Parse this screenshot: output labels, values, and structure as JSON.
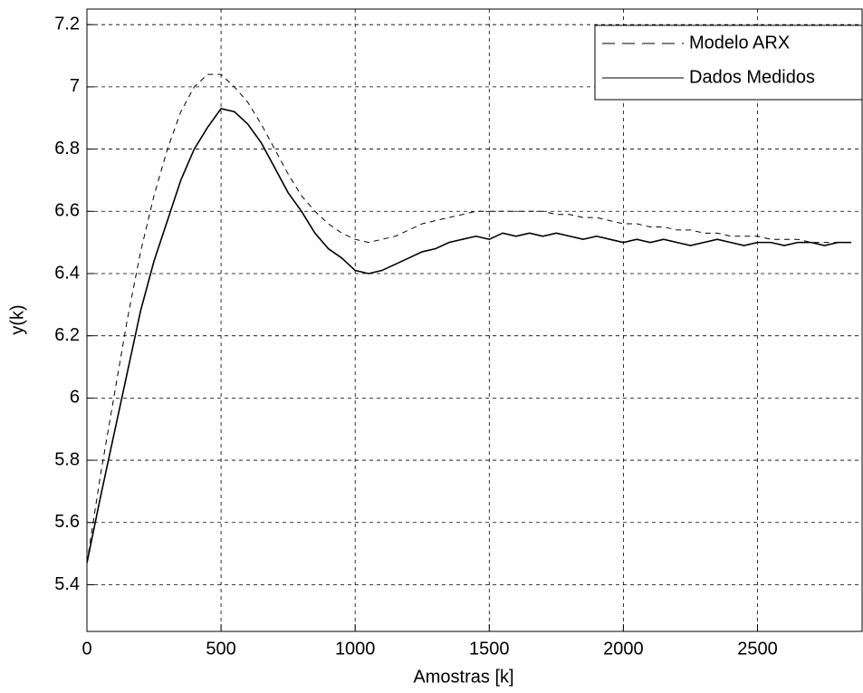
{
  "chart_data": {
    "type": "line",
    "xlabel": "Amostras [k]",
    "ylabel": "y(k)",
    "x": [
      0,
      50,
      100,
      150,
      200,
      250,
      300,
      350,
      400,
      450,
      500,
      550,
      600,
      650,
      700,
      750,
      800,
      850,
      900,
      950,
      1000,
      1050,
      1100,
      1150,
      1200,
      1250,
      1300,
      1350,
      1400,
      1450,
      1500,
      1550,
      1600,
      1650,
      1700,
      1750,
      1800,
      1850,
      1900,
      1950,
      2000,
      2050,
      2100,
      2150,
      2200,
      2250,
      2300,
      2350,
      2400,
      2450,
      2500,
      2550,
      2600,
      2650,
      2700,
      2750,
      2800,
      2850
    ],
    "series": [
      {
        "name": "Modelo ARX",
        "color": "#000000",
        "dash": true,
        "values": [
          5.47,
          5.75,
          6.0,
          6.25,
          6.47,
          6.65,
          6.8,
          6.92,
          7.0,
          7.04,
          7.04,
          7.0,
          6.95,
          6.88,
          6.8,
          6.72,
          6.65,
          6.6,
          6.56,
          6.53,
          6.51,
          6.5,
          6.51,
          6.52,
          6.54,
          6.56,
          6.57,
          6.58,
          6.59,
          6.6,
          6.6,
          6.6,
          6.6,
          6.6,
          6.6,
          6.59,
          6.59,
          6.58,
          6.58,
          6.57,
          6.56,
          6.56,
          6.55,
          6.55,
          6.54,
          6.54,
          6.53,
          6.53,
          6.52,
          6.52,
          6.52,
          6.51,
          6.51,
          6.51,
          6.5,
          6.5,
          6.5,
          6.5
        ]
      },
      {
        "name": "Dados Medidos",
        "color": "#000000",
        "dash": false,
        "values": [
          5.47,
          5.68,
          5.88,
          6.08,
          6.28,
          6.44,
          6.57,
          6.7,
          6.8,
          6.87,
          6.93,
          6.92,
          6.88,
          6.82,
          6.74,
          6.66,
          6.6,
          6.53,
          6.48,
          6.45,
          6.41,
          6.4,
          6.41,
          6.43,
          6.45,
          6.47,
          6.48,
          6.5,
          6.51,
          6.52,
          6.51,
          6.53,
          6.52,
          6.53,
          6.52,
          6.53,
          6.52,
          6.51,
          6.52,
          6.51,
          6.5,
          6.51,
          6.5,
          6.51,
          6.5,
          6.49,
          6.5,
          6.51,
          6.5,
          6.49,
          6.5,
          6.5,
          6.49,
          6.5,
          6.5,
          6.49,
          6.5,
          6.5
        ]
      }
    ],
    "xlim": [
      0,
      2890
    ],
    "ylim": [
      5.25,
      7.25
    ],
    "xticks": [
      0,
      500,
      1000,
      1500,
      2000,
      2500
    ],
    "yticks": [
      5.4,
      5.6,
      5.8,
      6,
      6.2,
      6.4,
      6.6,
      6.8,
      7,
      7.2
    ],
    "grid": true,
    "legend": "upper-right"
  }
}
